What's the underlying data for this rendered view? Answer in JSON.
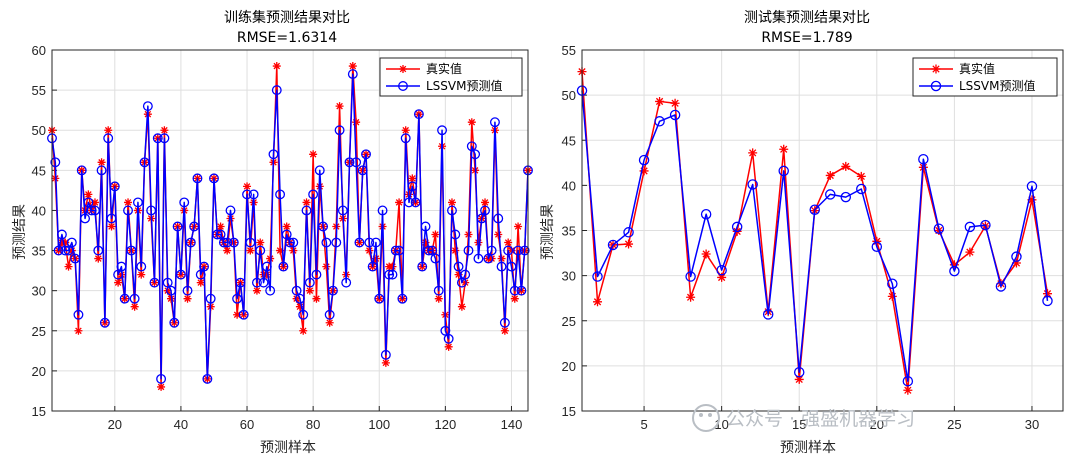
{
  "watermark": "公众号 · 强盛机器学习",
  "chart_data": [
    {
      "type": "line",
      "title": "训练集预测结果对比",
      "subtitle": "RMSE=1.6314",
      "xlabel": "预测样本",
      "ylabel": "预测结果",
      "xlim": [
        1,
        145
      ],
      "ylim": [
        15,
        60
      ],
      "xticks": [
        20,
        40,
        60,
        80,
        100,
        120,
        140
      ],
      "yticks": [
        15,
        20,
        25,
        30,
        35,
        40,
        45,
        50,
        55,
        60
      ],
      "legend_position": "top-right",
      "series": [
        {
          "name": "真实值",
          "color": "#ff0000",
          "marker": "star",
          "values": [
            50,
            44,
            35,
            36,
            36,
            33,
            35,
            34,
            25,
            45,
            40,
            42,
            40,
            41,
            34,
            46,
            26,
            50,
            38,
            43,
            31,
            32,
            29,
            41,
            35,
            28,
            40,
            32,
            46,
            52,
            39,
            31,
            49,
            18,
            50,
            30,
            29,
            26,
            38,
            32,
            40,
            29,
            36,
            38,
            44,
            31,
            33,
            19,
            28,
            44,
            37,
            38,
            36,
            35,
            39,
            36,
            27,
            31,
            27,
            43,
            35,
            41,
            30,
            36,
            32,
            32,
            34,
            46,
            58,
            35,
            33,
            38,
            36,
            35,
            29,
            28,
            25,
            41,
            30,
            47,
            29,
            43,
            38,
            33,
            26,
            30,
            38,
            53,
            39,
            32,
            46,
            58,
            51,
            36,
            45,
            47,
            35,
            33,
            34,
            29,
            38,
            21,
            33,
            33,
            35,
            41,
            29,
            50,
            42,
            44,
            41,
            52,
            33,
            36,
            35,
            35,
            37,
            29,
            48,
            27,
            23,
            41,
            35,
            32,
            28,
            31,
            37,
            51,
            45,
            36,
            39,
            41,
            34,
            34,
            50,
            37,
            34,
            25,
            36,
            35,
            29,
            38,
            30,
            35,
            45
          ]
        },
        {
          "name": "LSSVM预测值",
          "color": "#0000ff",
          "marker": "circle",
          "values": [
            49,
            46,
            35,
            37,
            35,
            35,
            36,
            34,
            27,
            45,
            39,
            41,
            40,
            40,
            35,
            45,
            26,
            49,
            39,
            43,
            32,
            33,
            29,
            40,
            35,
            29,
            41,
            33,
            46,
            53,
            40,
            31,
            49,
            19,
            49,
            31,
            30,
            26,
            38,
            32,
            41,
            30,
            36,
            38,
            44,
            32,
            33,
            19,
            29,
            44,
            37,
            37,
            36,
            36,
            40,
            36,
            29,
            31,
            27,
            42,
            36,
            42,
            31,
            35,
            31,
            33,
            30,
            47,
            55,
            42,
            33,
            37,
            36,
            36,
            30,
            29,
            27,
            40,
            31,
            42,
            32,
            45,
            38,
            36,
            27,
            30,
            36,
            50,
            40,
            31,
            46,
            57,
            46,
            36,
            45,
            47,
            36,
            33,
            36,
            29,
            40,
            22,
            32,
            32,
            35,
            35,
            29,
            49,
            41,
            43,
            41,
            52,
            33,
            38,
            35,
            35,
            34,
            30,
            50,
            25,
            24,
            40,
            37,
            33,
            31,
            32,
            35,
            48,
            47,
            34,
            39,
            40,
            34,
            35,
            51,
            39,
            33,
            26,
            35,
            33,
            30,
            35,
            30,
            35,
            45
          ]
        }
      ]
    },
    {
      "type": "line",
      "title": "测试集预测结果对比",
      "subtitle": "RMSE=1.789",
      "xlabel": "预测样本",
      "ylabel": "预测结果",
      "xlim": [
        1,
        32
      ],
      "ylim": [
        15,
        55
      ],
      "xticks": [
        5,
        10,
        15,
        20,
        25,
        30
      ],
      "yticks": [
        15,
        20,
        25,
        30,
        35,
        40,
        45,
        50,
        55
      ],
      "legend_position": "top-right",
      "series": [
        {
          "name": "真实值",
          "color": "#ff0000",
          "marker": "star",
          "values": [
            52.6,
            27.1,
            33.4,
            33.5,
            41.6,
            49.3,
            49.1,
            27.6,
            32.4,
            29.8,
            34.9,
            43.6,
            26.0,
            44.0,
            18.5,
            37.2,
            41.1,
            42.1,
            41.0,
            33.8,
            27.7,
            17.3,
            42.0,
            35.0,
            31.2,
            32.6,
            35.5,
            29.1,
            31.4,
            38.4,
            28.0
          ]
        },
        {
          "name": "LSSVM预测值",
          "color": "#0000ff",
          "marker": "circle",
          "values": [
            50.5,
            29.9,
            33.4,
            34.8,
            42.8,
            47.1,
            47.8,
            29.9,
            36.8,
            30.6,
            35.4,
            40.1,
            25.7,
            41.6,
            19.3,
            37.3,
            39.0,
            38.7,
            39.6,
            33.2,
            29.1,
            18.3,
            42.9,
            35.2,
            30.5,
            35.4,
            35.6,
            28.8,
            32.1,
            39.9,
            27.2
          ]
        }
      ]
    }
  ]
}
